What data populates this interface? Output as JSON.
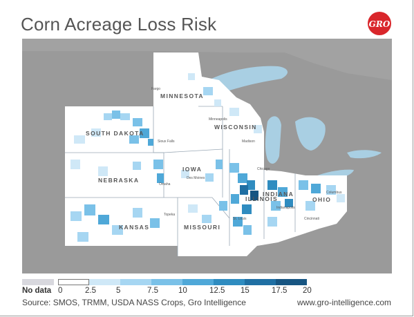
{
  "title": "Corn Acreage Loss Risk",
  "logo_text": "GRO",
  "colors": {
    "accent_red": "#d9262b",
    "lake": "#a9cfe3",
    "land_outside": "#9a9a9a",
    "no_data": "#d8d8de"
  },
  "states": [
    {
      "name": "MINNESOTA"
    },
    {
      "name": "WISCONSIN"
    },
    {
      "name": "SOUTH DAKOTA"
    },
    {
      "name": "IOWA"
    },
    {
      "name": "NEBRASKA"
    },
    {
      "name": "ILLINOIS"
    },
    {
      "name": "INDIANA"
    },
    {
      "name": "OHIO"
    },
    {
      "name": "KANSAS"
    },
    {
      "name": "MISSOURI"
    }
  ],
  "cities": [
    "Fargo",
    "Minneapolis",
    "Sioux Falls",
    "Des Moines",
    "Omaha",
    "Chicago",
    "Topeka",
    "Madison",
    "Indianapolis",
    "Columbus",
    "Cincinnati",
    "St. Louis"
  ],
  "legend": {
    "no_data_label": "No data",
    "no_data_color": "#d8d8de",
    "bins": [
      {
        "label": "0",
        "color": "#ffffff"
      },
      {
        "label": "2.5",
        "color": "#cfe8f7"
      },
      {
        "label": "5",
        "color": "#a6d6f2"
      },
      {
        "label": "7.5",
        "color": "#7ac1e8"
      },
      {
        "label": "10",
        "color": "#4fa8d8"
      },
      {
        "label": "12.5",
        "color": "#2f8cc0"
      },
      {
        "label": "15",
        "color": "#1f6fa3"
      },
      {
        "label": "17.5",
        "color": "#175582"
      },
      {
        "label": "20",
        "color": "#0e3b60"
      }
    ]
  },
  "source": "Source: SMOS, TRMM, USDA NASS Crops, Gro Intelligence",
  "url": "www.gro-intelligence.com"
}
